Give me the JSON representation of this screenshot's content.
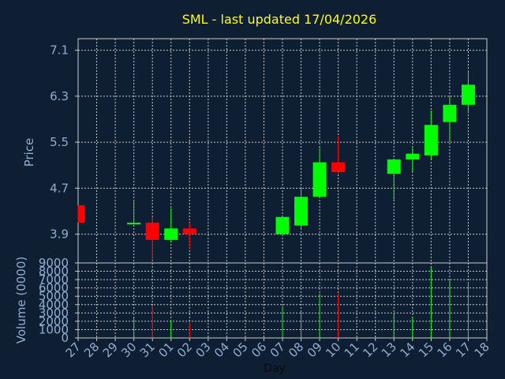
{
  "chart_data": {
    "type": "candlestick",
    "title": "SML - last updated 17/04/2026",
    "xlabel": "Day",
    "price": {
      "ylabel": "Price",
      "yticks": [
        3.9,
        4.7,
        5.5,
        6.3,
        7.1
      ],
      "ylim": [
        3.4,
        7.3
      ]
    },
    "volume": {
      "ylabel": "Volume (0000)",
      "yticks": [
        0,
        1000,
        2000,
        3000,
        4000,
        5000,
        6000,
        7000,
        8000,
        9000
      ],
      "ylim": [
        0,
        9000
      ]
    },
    "x_tick_labels": [
      "27",
      "28",
      "29",
      "30",
      "31",
      "01",
      "02",
      "03",
      "04",
      "05",
      "06",
      "07",
      "08",
      "09",
      "10",
      "11",
      "12",
      "13",
      "14",
      "15",
      "16",
      "17",
      "18"
    ],
    "candles": [
      {
        "day": "27",
        "open": 4.4,
        "high": 4.4,
        "low": 4.1,
        "close": 4.1,
        "volume": 0
      },
      {
        "day": "30",
        "open": 4.07,
        "high": 4.5,
        "low": 4.07,
        "close": 4.1,
        "volume": 2500
      },
      {
        "day": "31",
        "open": 4.1,
        "high": 4.2,
        "low": 3.45,
        "close": 3.8,
        "volume": 3900
      },
      {
        "day": "01",
        "open": 3.8,
        "high": 4.35,
        "low": 3.75,
        "close": 4.0,
        "volume": 2100
      },
      {
        "day": "02",
        "open": 4.0,
        "high": 4.1,
        "low": 3.65,
        "close": 3.9,
        "volume": 1800
      },
      {
        "day": "07",
        "open": 3.9,
        "high": 4.2,
        "low": 3.9,
        "close": 4.2,
        "volume": 3800
      },
      {
        "day": "08",
        "open": 4.05,
        "high": 4.7,
        "low": 4.0,
        "close": 4.55,
        "volume": 3200
      },
      {
        "day": "09",
        "open": 4.55,
        "high": 5.4,
        "low": 4.55,
        "close": 5.15,
        "volume": 5300
      },
      {
        "day": "10",
        "open": 5.15,
        "high": 5.6,
        "low": 4.95,
        "close": 4.98,
        "volume": 5300
      },
      {
        "day": "13",
        "open": 4.95,
        "high": 5.2,
        "low": 4.5,
        "close": 5.2,
        "volume": 2900
      },
      {
        "day": "14",
        "open": 5.2,
        "high": 5.4,
        "low": 4.98,
        "close": 5.3,
        "volume": 2500
      },
      {
        "day": "15",
        "open": 5.27,
        "high": 6.05,
        "low": 5.2,
        "close": 5.8,
        "volume": 8500
      },
      {
        "day": "16",
        "open": 5.85,
        "high": 6.3,
        "low": 5.5,
        "close": 6.15,
        "volume": 7000
      },
      {
        "day": "17",
        "open": 6.15,
        "high": 6.75,
        "low": 6.0,
        "close": 6.5,
        "volume": 6700
      }
    ],
    "colors": {
      "up": "#00ff00",
      "down": "#ff0000",
      "background": "#0f1f33",
      "grid": "#c8c8c8",
      "axis_text": "#8faed0",
      "title": "#ffff00"
    },
    "grid": true
  }
}
